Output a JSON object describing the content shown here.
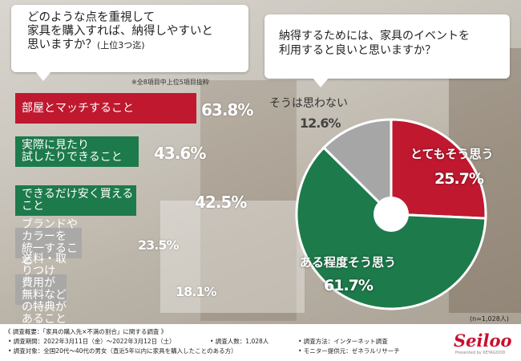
{
  "question1": {
    "text": "どのような点を重視して\n家具を購入すれば、納得しやすいと\n思いますか？",
    "subtext": "(上位3つ迄)",
    "note": "※全8項目中上位5項目抜粋"
  },
  "question2": {
    "text": "納得するためには、家具のイベントを\n利用すると良いと思いますか？"
  },
  "colors": {
    "red": "#c0182f",
    "green": "#1d7a4b",
    "gray": "#a6a6a6"
  },
  "chart_data": [
    {
      "type": "bar",
      "orientation": "horizontal",
      "categories": [
        "部屋とマッチすること",
        "実際に見たり\n試したりできること",
        "できるだけ安く買えること",
        "ブランドやカラーを\n統一すること",
        "送料・取りつけ費用が\n無料などの特典があること"
      ],
      "values": [
        63.8,
        43.6,
        42.5,
        23.5,
        18.1
      ],
      "value_labels": [
        "63.8%",
        "43.6%",
        "42.5%",
        "23.5%",
        "18.1%"
      ],
      "bar_colors": [
        "#c0182f",
        "#1d7a4b",
        "#1d7a4b",
        "#a6a6a6",
        "#a6a6a6"
      ],
      "xlim": [
        0,
        70
      ]
    },
    {
      "type": "pie",
      "style": "donut",
      "categories": [
        "とてもそう思う",
        "ある程度そう思う",
        "そうは思わない"
      ],
      "values": [
        25.7,
        61.7,
        12.6
      ],
      "value_labels": [
        "25.7%",
        "61.7%",
        "12.6%"
      ],
      "colors": [
        "#c0182f",
        "#1d7a4b",
        "#a6a6a6"
      ],
      "total_label": "(n=1,028人)"
    }
  ],
  "footer": {
    "line1": "《 調査概要：「家具の購入先×不満の割合」に関する調査 》",
    "period": "• 調査期間：2022年3月11日（金）～2022年3月12日（土）",
    "count": "• 調査人数：1,028人",
    "method": "• 調査方法：インターネット調査",
    "target": "• 調査対象：全国20代～40代の男女（直近5年以内に家具を購入したことのある方）",
    "provider": "• モニター提供元：ゼネラルリサーチ",
    "logo": "Seiloo",
    "logo_sub": "Presented by KEYAGOOD"
  }
}
